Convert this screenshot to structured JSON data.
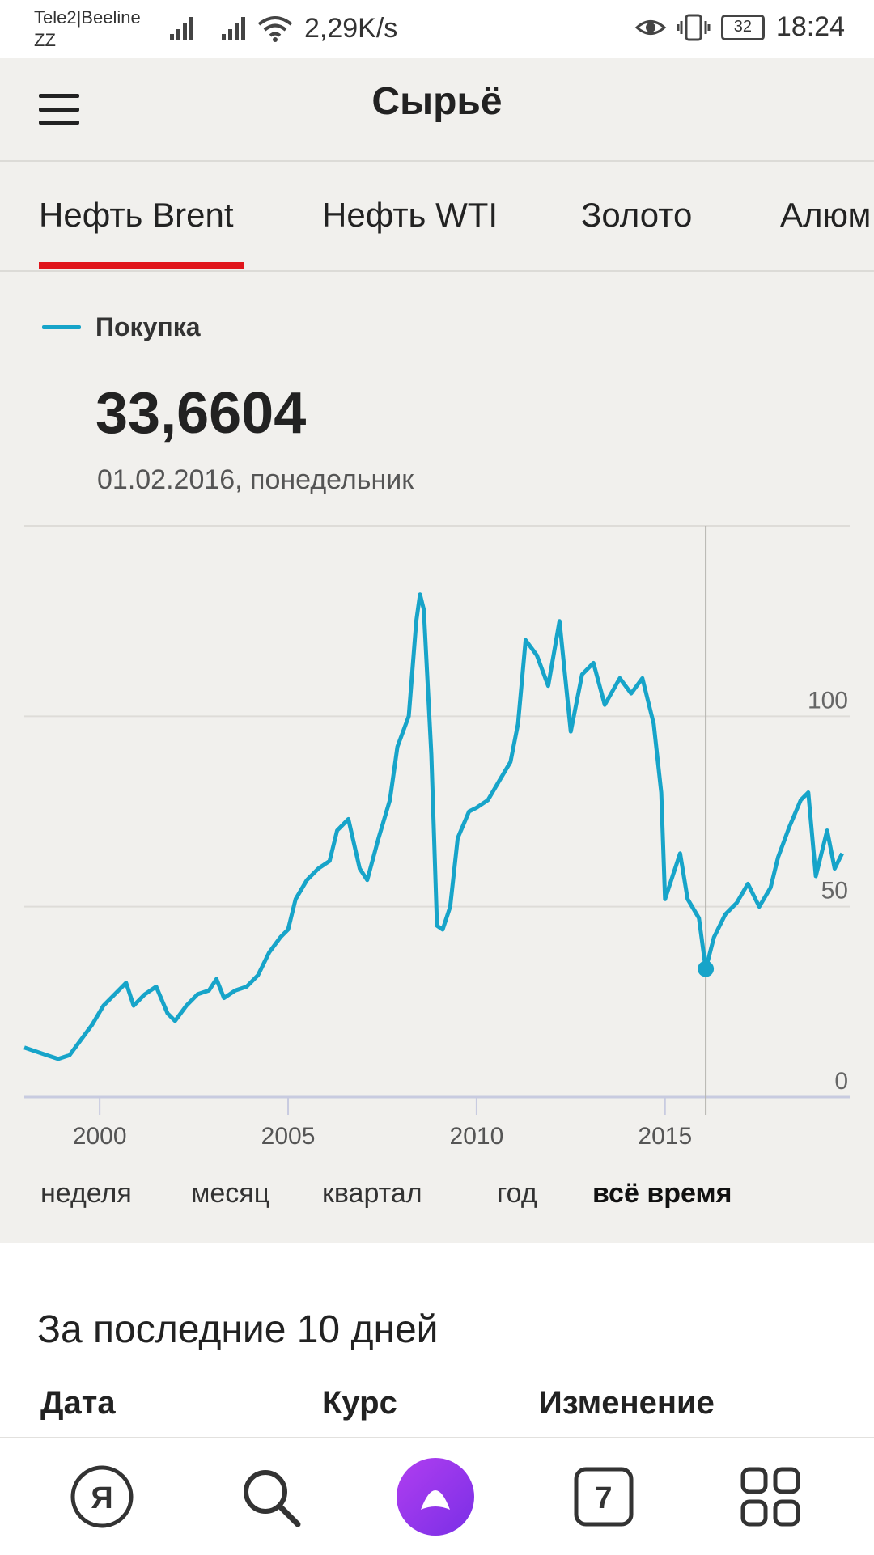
{
  "status_bar": {
    "carrier_1": "Tele2|Beeline",
    "carrier_2": "ZZ",
    "net_speed": "2,29K/s",
    "battery": "32",
    "time": "18:24"
  },
  "app_bar": {
    "title": "Сырьё"
  },
  "tabs": [
    {
      "label": "Нефть Brent",
      "active": true
    },
    {
      "label": "Нефть WTI",
      "active": false
    },
    {
      "label": "Золото",
      "active": false
    },
    {
      "label": "Алюм",
      "active": false
    }
  ],
  "legend": {
    "label": "Покупка"
  },
  "selected": {
    "value": "33,6604",
    "date": "01.02.2016, понедельник"
  },
  "chart_data": {
    "type": "line",
    "series": [
      {
        "name": "Покупка",
        "color": "#17a4c9",
        "points": [
          [
            1998.0,
            13
          ],
          [
            1998.3,
            12
          ],
          [
            1998.6,
            11
          ],
          [
            1998.9,
            10
          ],
          [
            1999.2,
            11
          ],
          [
            1999.5,
            15
          ],
          [
            1999.8,
            19
          ],
          [
            2000.1,
            24
          ],
          [
            2000.4,
            27
          ],
          [
            2000.7,
            30
          ],
          [
            2000.9,
            24
          ],
          [
            2001.2,
            27
          ],
          [
            2001.5,
            29
          ],
          [
            2001.8,
            22
          ],
          [
            2002.0,
            20
          ],
          [
            2002.3,
            24
          ],
          [
            2002.6,
            27
          ],
          [
            2002.9,
            28
          ],
          [
            2003.1,
            31
          ],
          [
            2003.3,
            26
          ],
          [
            2003.6,
            28
          ],
          [
            2003.9,
            29
          ],
          [
            2004.2,
            32
          ],
          [
            2004.5,
            38
          ],
          [
            2004.8,
            42
          ],
          [
            2005.0,
            44
          ],
          [
            2005.2,
            52
          ],
          [
            2005.5,
            57
          ],
          [
            2005.8,
            60
          ],
          [
            2006.1,
            62
          ],
          [
            2006.3,
            70
          ],
          [
            2006.6,
            73
          ],
          [
            2006.9,
            60
          ],
          [
            2007.1,
            57
          ],
          [
            2007.4,
            68
          ],
          [
            2007.7,
            78
          ],
          [
            2007.9,
            92
          ],
          [
            2008.2,
            100
          ],
          [
            2008.4,
            125
          ],
          [
            2008.5,
            132
          ],
          [
            2008.6,
            128
          ],
          [
            2008.8,
            90
          ],
          [
            2008.95,
            45
          ],
          [
            2009.1,
            44
          ],
          [
            2009.3,
            50
          ],
          [
            2009.5,
            68
          ],
          [
            2009.8,
            75
          ],
          [
            2010.0,
            76
          ],
          [
            2010.3,
            78
          ],
          [
            2010.6,
            83
          ],
          [
            2010.9,
            88
          ],
          [
            2011.1,
            98
          ],
          [
            2011.3,
            120
          ],
          [
            2011.6,
            116
          ],
          [
            2011.9,
            108
          ],
          [
            2012.2,
            125
          ],
          [
            2012.5,
            96
          ],
          [
            2012.8,
            111
          ],
          [
            2013.1,
            114
          ],
          [
            2013.4,
            103
          ],
          [
            2013.8,
            110
          ],
          [
            2014.1,
            106
          ],
          [
            2014.4,
            110
          ],
          [
            2014.7,
            98
          ],
          [
            2014.9,
            80
          ],
          [
            2015.0,
            52
          ],
          [
            2015.2,
            58
          ],
          [
            2015.4,
            64
          ],
          [
            2015.6,
            52
          ],
          [
            2015.9,
            47
          ],
          [
            2016.08,
            33.66
          ],
          [
            2016.3,
            42
          ],
          [
            2016.6,
            48
          ],
          [
            2016.9,
            51
          ],
          [
            2017.2,
            56
          ],
          [
            2017.5,
            50
          ],
          [
            2017.8,
            55
          ],
          [
            2018.0,
            63
          ],
          [
            2018.3,
            71
          ],
          [
            2018.6,
            78
          ],
          [
            2018.8,
            80
          ],
          [
            2019.0,
            58
          ],
          [
            2019.3,
            70
          ],
          [
            2019.5,
            60
          ],
          [
            2019.7,
            64
          ]
        ]
      }
    ],
    "selected_point": [
      2016.08,
      33.66
    ],
    "x_ticks": [
      "2000",
      "2005",
      "2010",
      "2015"
    ],
    "y_ticks": [
      "0",
      "50",
      "100"
    ],
    "xlim": [
      1998.0,
      2019.9
    ],
    "ylim": [
      0,
      150
    ],
    "grid": true
  },
  "periods": [
    {
      "label": "неделя",
      "active": false
    },
    {
      "label": "месяц",
      "active": false
    },
    {
      "label": "квартал",
      "active": false
    },
    {
      "label": "год",
      "active": false
    },
    {
      "label": "всё время",
      "active": true
    }
  ],
  "card": {
    "title": "За последние 10 дней",
    "columns": [
      "Дата",
      "Курс",
      "Изменение"
    ]
  },
  "bottom_nav": {
    "items": [
      {
        "icon": "yandex-icon",
        "text": "Я"
      },
      {
        "icon": "search-icon"
      },
      {
        "icon": "alice-icon"
      },
      {
        "icon": "tabs-icon",
        "text": "7"
      },
      {
        "icon": "grid-icon"
      }
    ]
  }
}
